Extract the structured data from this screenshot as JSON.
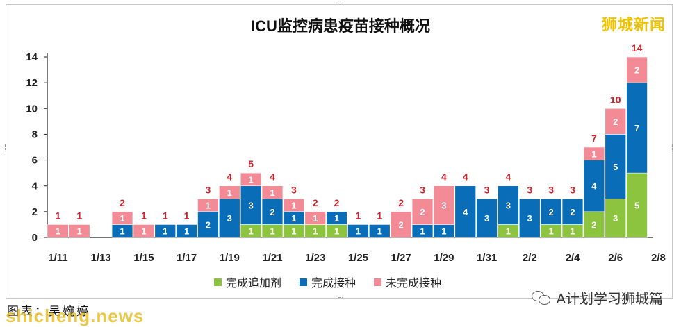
{
  "brand": "狮城新闻",
  "credit_text": "图表：吴婉婷",
  "watermark_text": "shicheng.news",
  "wechat_account": "A计划学习狮城篇",
  "wechat_icon": "wechat-icon",
  "colors": {
    "booster": "#8cc43f",
    "vaccinated": "#0a6db7",
    "unvaccinated": "#f28b96",
    "total_label": "#d0202a",
    "segment_label": "#ffffff",
    "brand": "#f2c200"
  },
  "chart_data": {
    "type": "bar",
    "stacked": true,
    "title": "ICU监控病患疫苗接种概况",
    "xlabel": "",
    "ylabel": "",
    "ylim": [
      0,
      14
    ],
    "yticks": [
      0,
      2,
      4,
      6,
      8,
      10,
      12,
      14
    ],
    "grid": false,
    "legend_position": "bottom",
    "categories": [
      "1/11",
      "1/12",
      "1/13",
      "1/14",
      "1/15",
      "1/16",
      "1/17",
      "1/18",
      "1/19",
      "1/20",
      "1/21",
      "1/22",
      "1/23",
      "1/24",
      "1/25",
      "1/26",
      "1/27",
      "1/28",
      "1/29",
      "1/30",
      "1/31",
      "2/1",
      "2/2",
      "2/3",
      "2/4",
      "2/5",
      "2/6",
      "2/7"
    ],
    "xtick_labels": [
      "1/11",
      "1/13",
      "1/15",
      "1/17",
      "1/19",
      "1/21",
      "1/23",
      "1/25",
      "1/27",
      "1/29",
      "1/31",
      "2/2",
      "2/4",
      "2/6",
      "2/8"
    ],
    "series": [
      {
        "name": "完成追加剂",
        "values": [
          0,
          0,
          0,
          0,
          0,
          0,
          0,
          0,
          0,
          1,
          1,
          1,
          1,
          1,
          0,
          0,
          0,
          0,
          0,
          0,
          0,
          1,
          0,
          1,
          1,
          2,
          3,
          5
        ]
      },
      {
        "name": "完成接种",
        "values": [
          0,
          0,
          0,
          1,
          0,
          1,
          1,
          2,
          3,
          3,
          2,
          1,
          0,
          1,
          1,
          1,
          0,
          1,
          1,
          4,
          3,
          3,
          3,
          2,
          2,
          4,
          5,
          7
        ]
      },
      {
        "name": "未完成接种",
        "values": [
          1,
          1,
          0,
          1,
          1,
          0,
          0,
          1,
          1,
          1,
          1,
          1,
          1,
          0,
          0,
          0,
          2,
          2,
          3,
          0,
          0,
          0,
          0,
          0,
          0,
          1,
          2,
          2
        ]
      }
    ],
    "totals": [
      1,
      1,
      0,
      2,
      1,
      1,
      1,
      3,
      4,
      5,
      4,
      3,
      2,
      2,
      1,
      1,
      2,
      3,
      4,
      4,
      3,
      4,
      3,
      3,
      3,
      7,
      10,
      14
    ]
  }
}
